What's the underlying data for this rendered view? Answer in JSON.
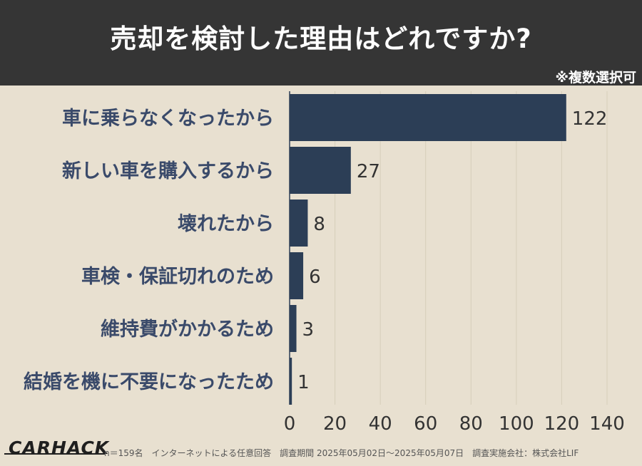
{
  "header": {
    "title": "売却を検討した理由はどれですか?",
    "note": "※複数選択可"
  },
  "footer": {
    "logo": "CARHACK",
    "survey_info": "n＝159名　インターネットによる任意回答　調査期間 2025年05月02日〜2025年05月07日　調査実施会社：株式会社LIF"
  },
  "colors": {
    "header_bg": "#353535",
    "background": "#e8e0d0",
    "bar": "#2c3e56",
    "category_label": "#3a4a6a",
    "grid": "#d6ceba"
  },
  "chart_data": {
    "type": "bar",
    "orientation": "horizontal",
    "categories": [
      "車に乗らなくなったから",
      "新しい車を購入するから",
      "壊れたから",
      "車検・保証切れのため",
      "維持費がかかるため",
      "結婚を機に不要になったため"
    ],
    "values": [
      122,
      27,
      8,
      6,
      3,
      1
    ],
    "xlim": [
      0,
      140
    ],
    "xticks": [
      0,
      20,
      40,
      60,
      80,
      100,
      120,
      140
    ],
    "grid": true,
    "data_labels": true
  }
}
